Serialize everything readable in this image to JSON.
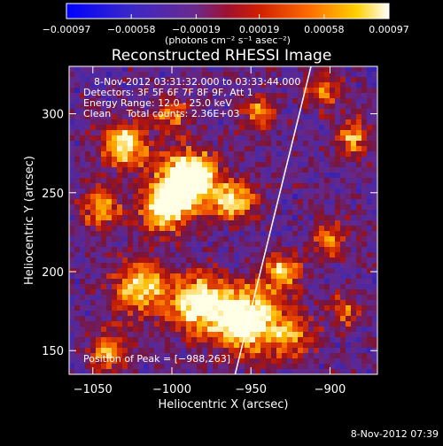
{
  "chart_data": {
    "type": "heatmap",
    "title": "Reconstructed RHESSI Image",
    "xlabel": "Heliocentric X (arcsec)",
    "ylabel": "Heliocentric Y (arcsec)",
    "xlim": [
      -1065,
      -870
    ],
    "ylim": [
      135,
      330
    ],
    "x_ticks": [
      -1050,
      -1000,
      -950,
      -900
    ],
    "x_tick_labels": [
      "−1050",
      "−1000",
      "−950",
      "−900"
    ],
    "y_ticks": [
      150,
      200,
      250,
      300
    ],
    "y_tick_labels": [
      "150",
      "200",
      "250",
      "300"
    ],
    "colorbar": {
      "range": [
        -0.00097,
        0.00097
      ],
      "ticks": [
        -0.00097,
        -0.00058,
        -0.00019,
        0.00019,
        0.00058,
        0.00097
      ],
      "tick_labels": [
        "−0.00097",
        "−0.00058",
        "−0.00019",
        "0.00019",
        "0.00058",
        "0.00097"
      ],
      "unit_label": "(photons cm⁻² s⁻¹ asec⁻²)",
      "colors": [
        "#0000ff",
        "#5a2aa8",
        "#7a2a7a",
        "#c01010",
        "#ff6000",
        "#ffd000",
        "#ffffff"
      ]
    },
    "info_lines": [
      "8-Nov-2012 03:31:32.000 to 03:33:44.000",
      "Detectors: 3F 5F 6F 7F 8F 9F, Att 1",
      "Energy Range: 12.0 - 25.0 keV",
      "Clean     Total counts: 2.36E+03"
    ],
    "peak_label": "Position of Peak = [−988,263]",
    "limb_line": {
      "x": [
        -960,
        -912
      ],
      "y": [
        135,
        330
      ]
    },
    "blobs": [
      {
        "x": -990,
        "y": 258,
        "sigma": 13,
        "amp": 1.0
      },
      {
        "x": -1005,
        "y": 240,
        "sigma": 10,
        "amp": 0.75
      },
      {
        "x": -1030,
        "y": 280,
        "sigma": 10,
        "amp": 0.7
      },
      {
        "x": -1045,
        "y": 240,
        "sigma": 9,
        "amp": 0.5
      },
      {
        "x": -960,
        "y": 245,
        "sigma": 9,
        "amp": 0.65
      },
      {
        "x": -955,
        "y": 170,
        "sigma": 14,
        "amp": 0.95
      },
      {
        "x": -985,
        "y": 180,
        "sigma": 12,
        "amp": 0.75
      },
      {
        "x": -1020,
        "y": 190,
        "sigma": 12,
        "amp": 0.65
      },
      {
        "x": -1040,
        "y": 150,
        "sigma": 9,
        "amp": 0.5
      },
      {
        "x": -930,
        "y": 200,
        "sigma": 9,
        "amp": 0.55
      },
      {
        "x": -925,
        "y": 160,
        "sigma": 10,
        "amp": 0.5
      },
      {
        "x": -900,
        "y": 220,
        "sigma": 8,
        "amp": 0.45
      },
      {
        "x": -885,
        "y": 285,
        "sigma": 8,
        "amp": 0.5
      },
      {
        "x": -890,
        "y": 175,
        "sigma": 8,
        "amp": 0.35
      },
      {
        "x": -945,
        "y": 300,
        "sigma": 8,
        "amp": 0.45
      },
      {
        "x": -905,
        "y": 315,
        "sigma": 8,
        "amp": 0.45
      },
      {
        "x": -1000,
        "y": 300,
        "sigma": 8,
        "amp": 0.45
      }
    ],
    "grid": false
  },
  "footer": {
    "timestamp": "8-Nov-2012 07:39"
  }
}
